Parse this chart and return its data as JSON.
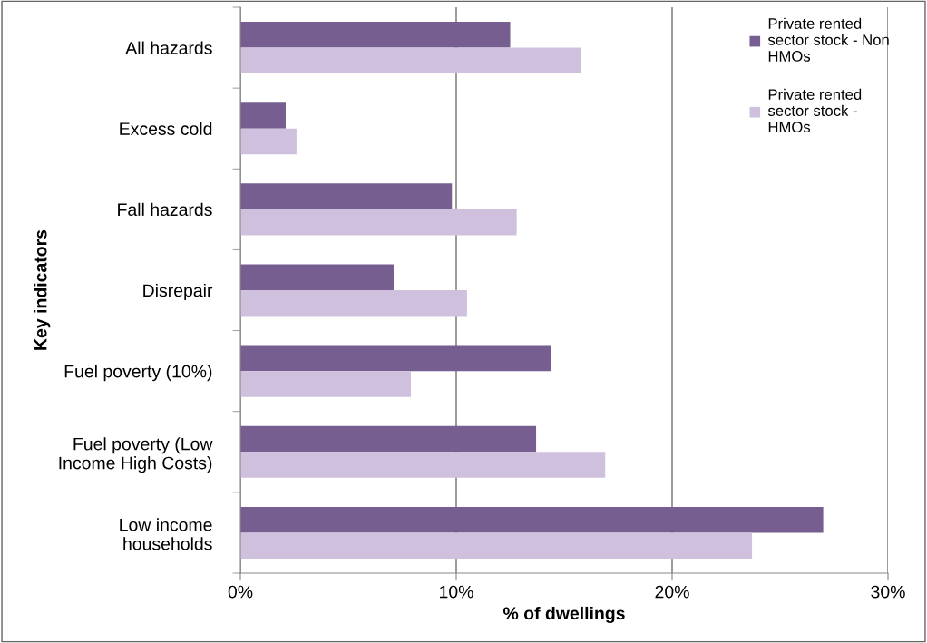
{
  "chart_data": {
    "type": "bar",
    "orientation": "horizontal",
    "xlabel": "% of dwellings",
    "ylabel": "Key indicators",
    "categories": [
      "All hazards",
      "Excess cold",
      "Fall hazards",
      "Disrepair",
      "Fuel poverty (10%)",
      "Fuel poverty (Low\nIncome High Costs)",
      "Low income\nhouseholds"
    ],
    "series": [
      {
        "name": "Private rented sector stock - Non HMOs",
        "color": "#765f90",
        "values": [
          12.5,
          2.1,
          9.8,
          7.1,
          14.4,
          13.7,
          27.0
        ]
      },
      {
        "name": "Private rented sector stock - HMOs",
        "color": "#cfc1dd",
        "values": [
          15.8,
          2.6,
          12.8,
          10.5,
          7.9,
          16.9,
          23.7
        ]
      }
    ],
    "xlim": [
      0,
      30
    ],
    "xticks": [
      {
        "value": 0,
        "label": "0%"
      },
      {
        "value": 10,
        "label": "10%"
      },
      {
        "value": 20,
        "label": "20%"
      },
      {
        "value": 30,
        "label": "30%"
      }
    ],
    "grid": "x",
    "legend": "top right"
  }
}
